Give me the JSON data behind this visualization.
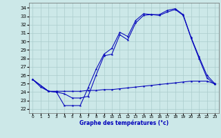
{
  "xlabel": "Graphe des températures (°c)",
  "background_color": "#cce8e8",
  "grid_color": "#aacccc",
  "line_color": "#0000bb",
  "xlim": [
    -0.5,
    23.5
  ],
  "ylim": [
    21.5,
    34.6
  ],
  "ytick_vals": [
    22,
    23,
    24,
    25,
    26,
    27,
    28,
    29,
    30,
    31,
    32,
    33,
    34
  ],
  "xtick_vals": [
    0,
    1,
    2,
    3,
    4,
    5,
    6,
    7,
    8,
    9,
    10,
    11,
    12,
    13,
    14,
    15,
    16,
    17,
    18,
    19,
    20,
    21,
    22,
    23
  ],
  "line1_x": [
    0,
    1,
    2,
    3,
    4,
    5,
    6,
    7,
    8,
    9,
    10,
    11,
    12,
    13,
    14,
    15,
    16,
    17,
    18,
    19,
    20,
    21,
    22,
    23
  ],
  "line1_y": [
    25.5,
    24.6,
    24.1,
    24.0,
    22.4,
    22.4,
    22.4,
    24.5,
    26.7,
    28.5,
    29.2,
    31.1,
    30.6,
    32.5,
    33.3,
    33.2,
    33.2,
    33.7,
    33.9,
    33.2,
    30.5,
    28.2,
    26.0,
    25.0
  ],
  "line2_x": [
    0,
    2,
    3,
    4,
    5,
    6,
    7,
    8,
    9,
    10,
    11,
    12,
    13,
    14,
    15,
    16,
    17,
    18,
    19,
    20,
    21,
    22,
    23
  ],
  "line2_y": [
    25.5,
    24.1,
    24.0,
    23.8,
    23.3,
    23.3,
    23.5,
    26.0,
    28.3,
    28.5,
    30.8,
    30.2,
    32.2,
    33.1,
    33.2,
    33.1,
    33.5,
    33.8,
    33.1,
    30.4,
    28.0,
    25.7,
    24.9
  ],
  "line3_x": [
    0,
    2,
    3,
    4,
    5,
    6,
    7,
    8,
    9,
    10,
    11,
    12,
    13,
    14,
    15,
    16,
    17,
    18,
    19,
    20,
    21,
    22,
    23
  ],
  "line3_y": [
    25.5,
    24.1,
    24.1,
    24.1,
    24.1,
    24.1,
    24.2,
    24.2,
    24.3,
    24.3,
    24.4,
    24.5,
    24.6,
    24.7,
    24.8,
    24.9,
    25.0,
    25.1,
    25.2,
    25.3,
    25.3,
    25.3,
    25.0
  ]
}
